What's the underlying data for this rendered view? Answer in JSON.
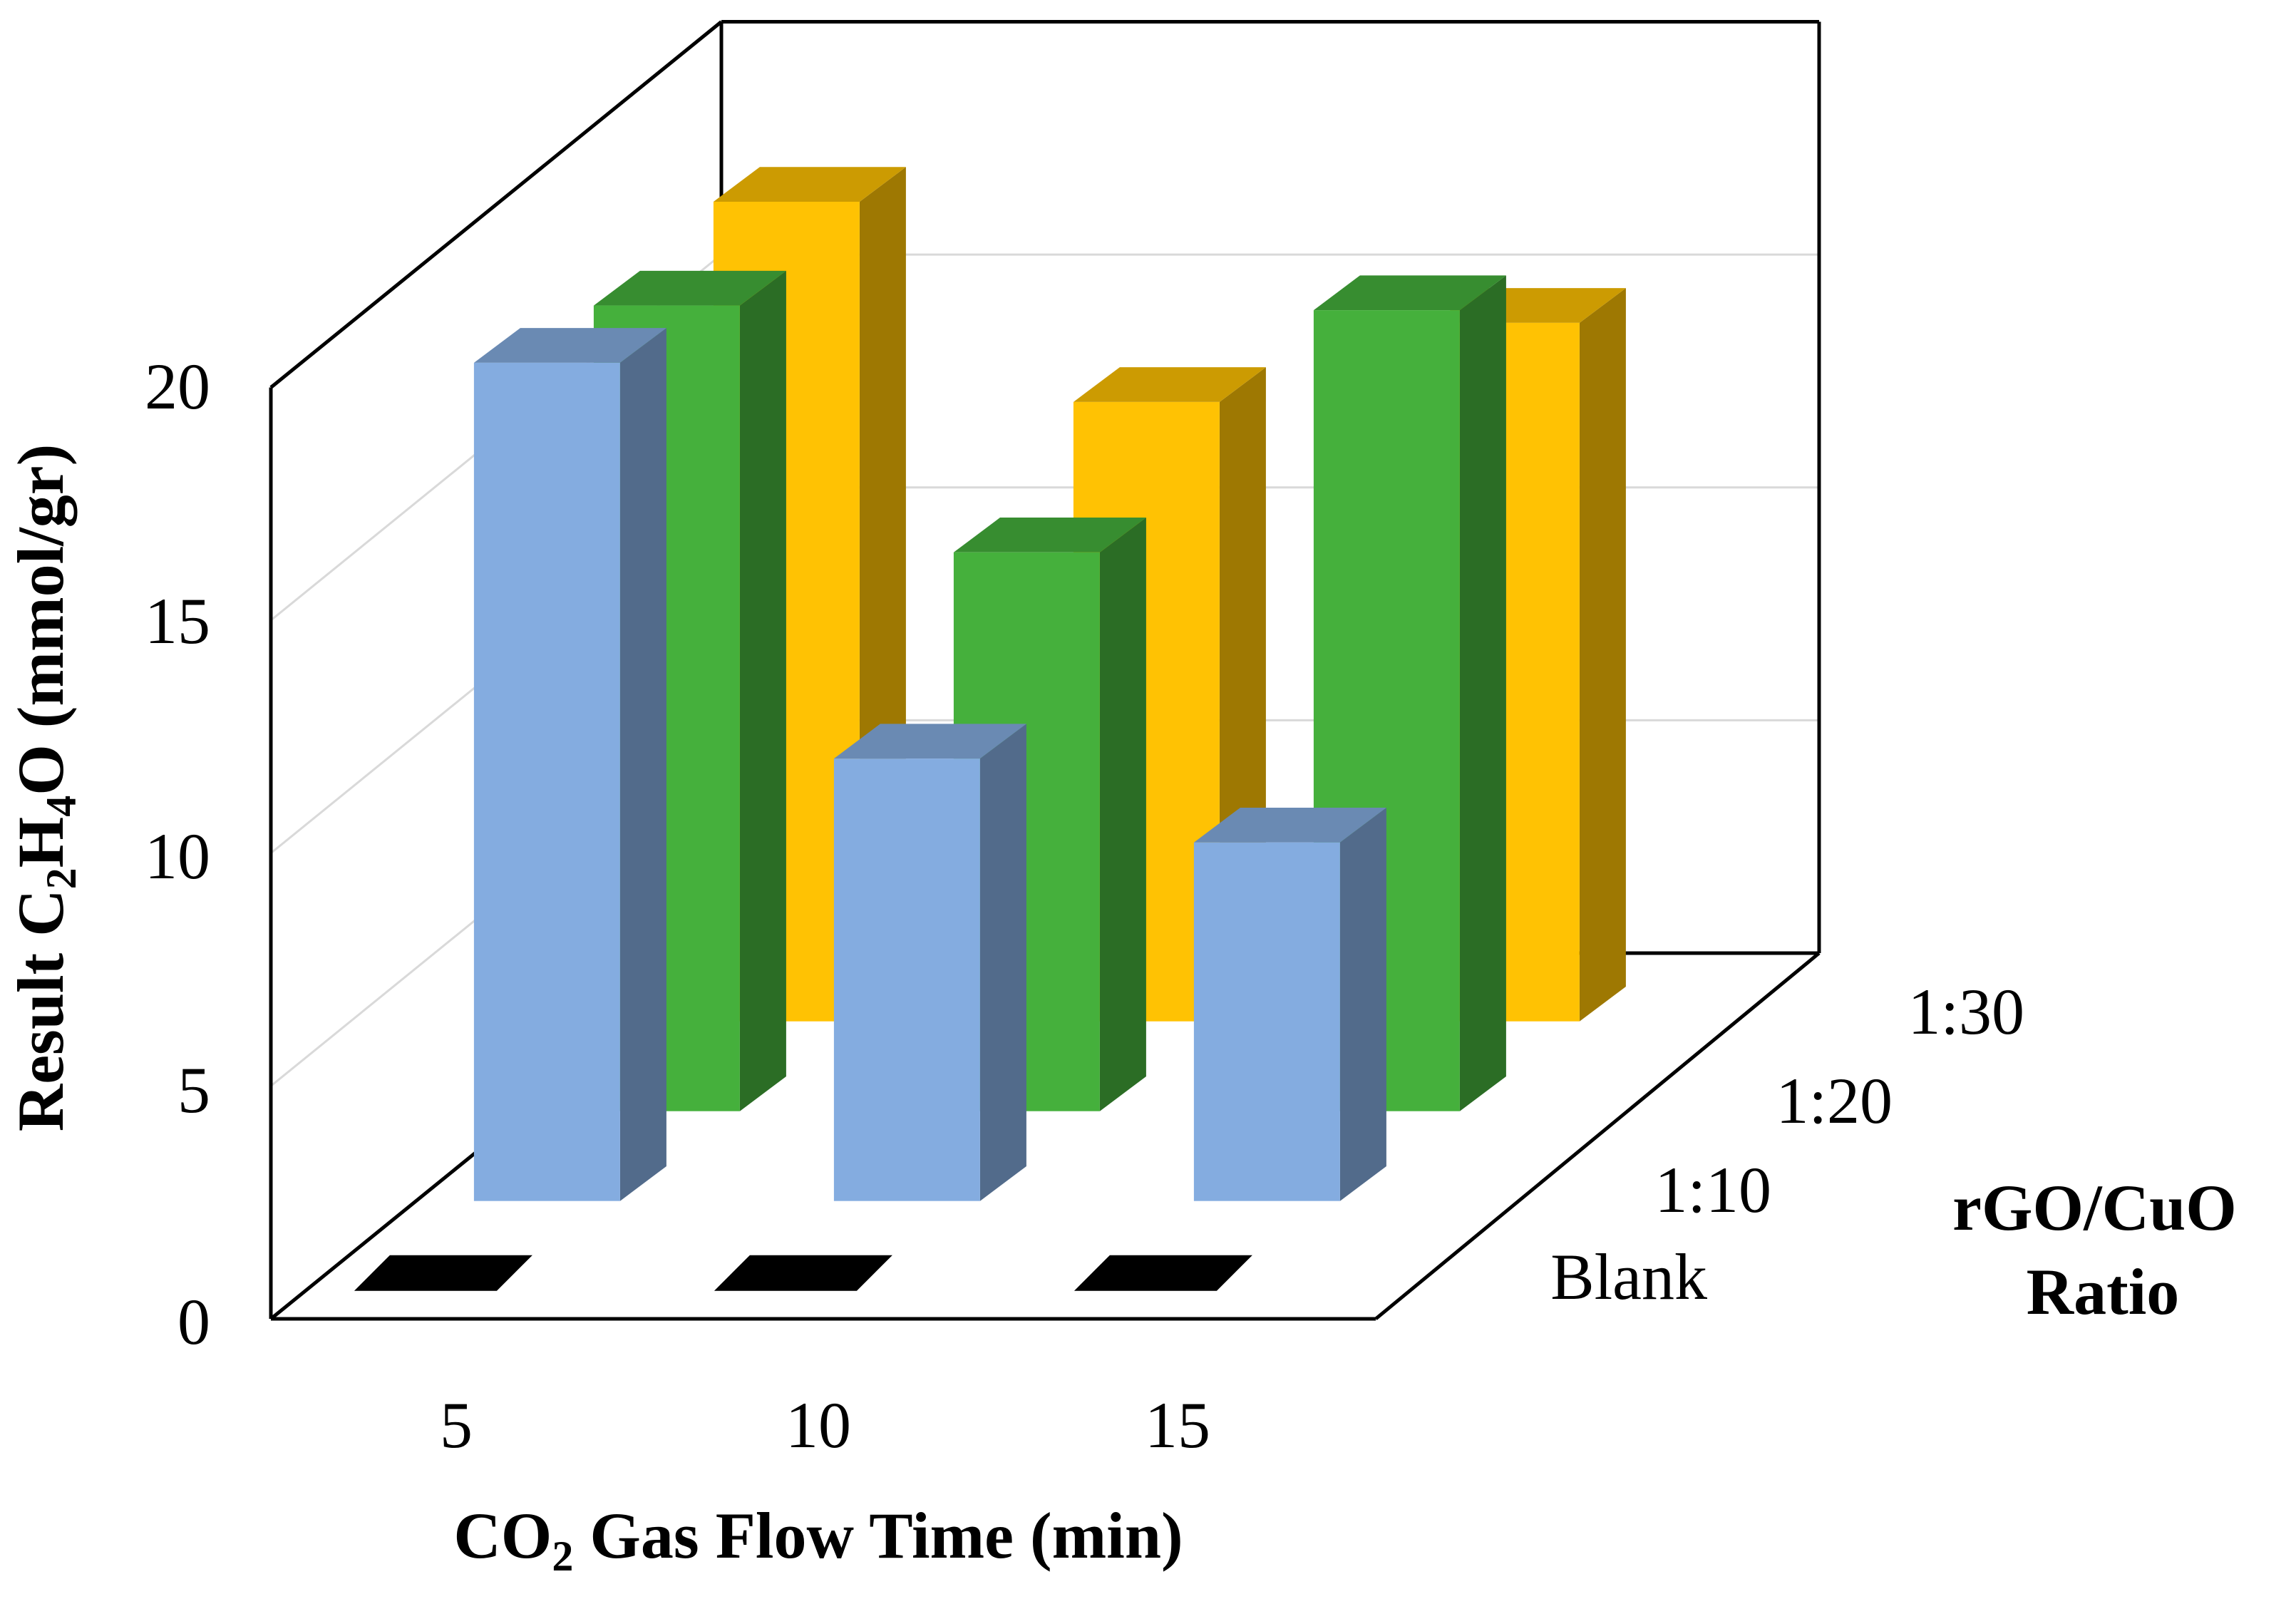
{
  "chart_data": {
    "type": "bar",
    "subtype": "3d-column",
    "title": "",
    "xlabel": {
      "prefix": "CO",
      "sub": "2",
      "suffix": " Gas Flow Time (min)"
    },
    "ylabel": {
      "parts": [
        "Result C",
        "2",
        "H",
        "4",
        "O (mmol/gr)"
      ]
    },
    "zlabel": [
      "rGO/CuO",
      "Ratio"
    ],
    "categories": [
      "5",
      "10",
      "15"
    ],
    "ylim": [
      0,
      20
    ],
    "yticks": [
      "0",
      "5",
      "10",
      "15",
      "20"
    ],
    "series": [
      {
        "name": "Blank",
        "color": "#000000",
        "values": [
          0,
          0,
          0
        ]
      },
      {
        "name": "1:10",
        "color": "#84ACE0",
        "values": [
          18,
          9.5,
          7.7
        ]
      },
      {
        "name": "1:20",
        "color": "#45B03C",
        "values": [
          17.3,
          12,
          17.2
        ]
      },
      {
        "name": "1:30",
        "color": "#FFC203",
        "values": [
          17.6,
          13.3,
          15
        ]
      }
    ]
  }
}
